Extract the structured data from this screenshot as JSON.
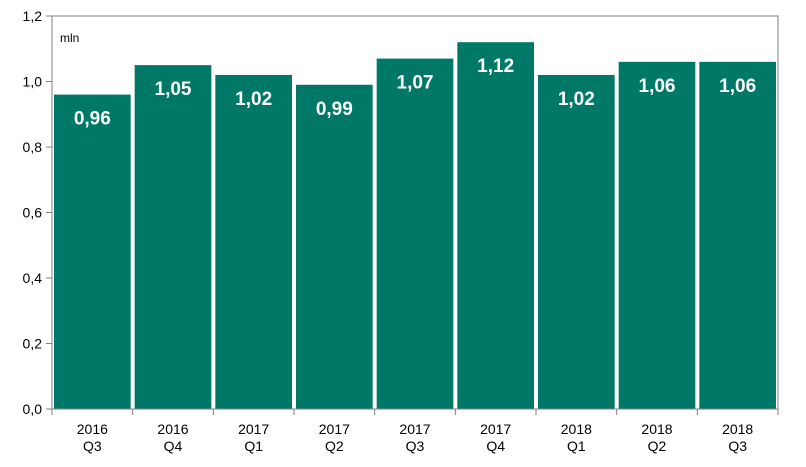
{
  "chart_data": {
    "type": "bar",
    "unit_label": "mln",
    "categories": [
      [
        "2016",
        "Q3"
      ],
      [
        "2016",
        "Q4"
      ],
      [
        "2017",
        "Q1"
      ],
      [
        "2017",
        "Q2"
      ],
      [
        "2017",
        "Q3"
      ],
      [
        "2017",
        "Q4"
      ],
      [
        "2018",
        "Q1"
      ],
      [
        "2018",
        "Q2"
      ],
      [
        "2018",
        "Q3"
      ]
    ],
    "values": [
      0.96,
      1.05,
      1.02,
      0.99,
      1.07,
      1.12,
      1.02,
      1.06,
      1.06
    ],
    "data_labels": [
      "0,96",
      "1,05",
      "1,02",
      "0,99",
      "1,07",
      "1,12",
      "1,02",
      "1,06",
      "1,06"
    ],
    "ylim": [
      0,
      1.2
    ],
    "yticks": [
      0,
      0.2,
      0.4,
      0.6,
      0.8,
      1.0,
      1.2
    ],
    "ytick_labels": [
      "0,0",
      "0,2",
      "0,4",
      "0,6",
      "0,8",
      "1,0",
      "1,2"
    ],
    "grid": false,
    "legend": "none",
    "colors": {
      "bar": "#007868",
      "axis": "#808080",
      "frame": "#808080",
      "label": "#ffffff"
    }
  }
}
